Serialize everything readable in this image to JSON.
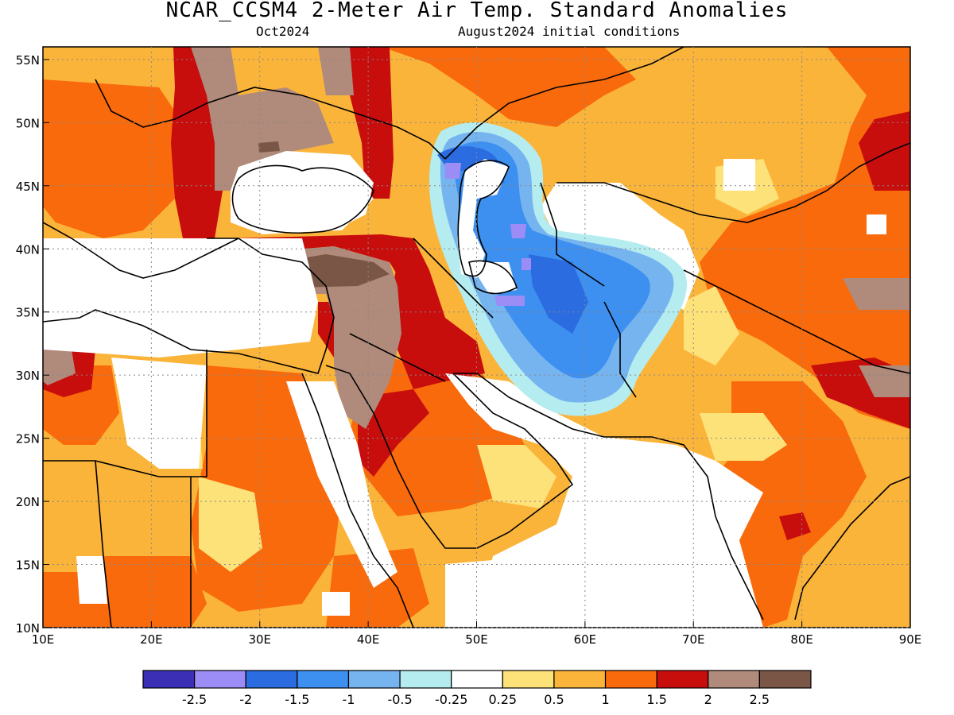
{
  "header": {
    "title": "NCAR_CCSM4 2-Meter Air Temp. Standard Anomalies",
    "forecast_month": "Oct2024",
    "init": "August2024 initial conditions"
  },
  "map": {
    "lon_range": [
      10,
      90
    ],
    "lat_range": [
      10,
      56
    ],
    "x_ticks": [
      "10E",
      "20E",
      "30E",
      "40E",
      "50E",
      "60E",
      "70E",
      "80E",
      "90E"
    ],
    "y_ticks": [
      "10N",
      "15N",
      "20N",
      "25N",
      "30N",
      "35N",
      "40N",
      "45N",
      "50N",
      "55N"
    ],
    "grid": "dotted"
  },
  "colorbar": {
    "colors": [
      "#3a2fb5",
      "#9c8cf5",
      "#2b6ce0",
      "#3d8ff0",
      "#76b4f0",
      "#b4ecf0",
      "#ffffff",
      "#fde27a",
      "#fbb43a",
      "#f96a0c",
      "#c80d0d",
      "#b08a7a",
      "#7a5646"
    ],
    "labels": [
      "-2.5",
      "-2",
      "-1.5",
      "-1",
      "-0.5",
      "-0.25",
      "0.25",
      "0.5",
      "1",
      "1.5",
      "2",
      "2.5"
    ]
  }
}
